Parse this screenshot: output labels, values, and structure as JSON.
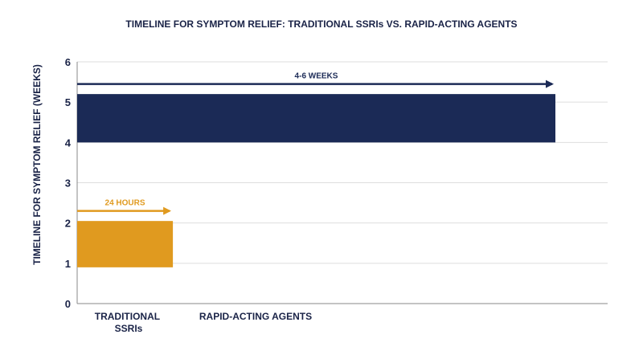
{
  "colors": {
    "navy": "#1b2a56",
    "gold": "#e09a1f",
    "grid": "#dedede",
    "text": "#1a2347"
  },
  "chart_data": {
    "type": "bar",
    "title": "TIMELINE FOR SYMPTOM RELIEF: TRADITIONAL SSRIs VS. RAPID-ACTING AGENTS",
    "xlabel": "",
    "ylabel": "TIMELINE FOR SYMPTOM RELIEF (WEEKS)",
    "ylim": [
      0,
      6
    ],
    "yticks": [
      "0",
      "1",
      "2",
      "3",
      "4",
      "5",
      "6"
    ],
    "grid": true,
    "categories": [
      "TRADITIONAL SSRIs",
      "RAPID-ACTING AGENTS"
    ],
    "bars": [
      {
        "y_start": 0.9,
        "y_end": 2.05,
        "x_start": 0,
        "x_end": 1.2,
        "color": "#e09a1f"
      },
      {
        "y_start": 4.0,
        "y_end": 5.2,
        "x_start": 0,
        "x_end": 6,
        "color": "#1b2a56"
      }
    ],
    "annotations": [
      {
        "text": "24 HOURS",
        "y": 2.3,
        "x_start": 0,
        "x_end": 1.2,
        "color": "#e09a1f"
      },
      {
        "text": "4-6 WEEKS",
        "y": 5.45,
        "x_start": 0,
        "x_end": 6,
        "color": "#1b2a56"
      }
    ]
  }
}
